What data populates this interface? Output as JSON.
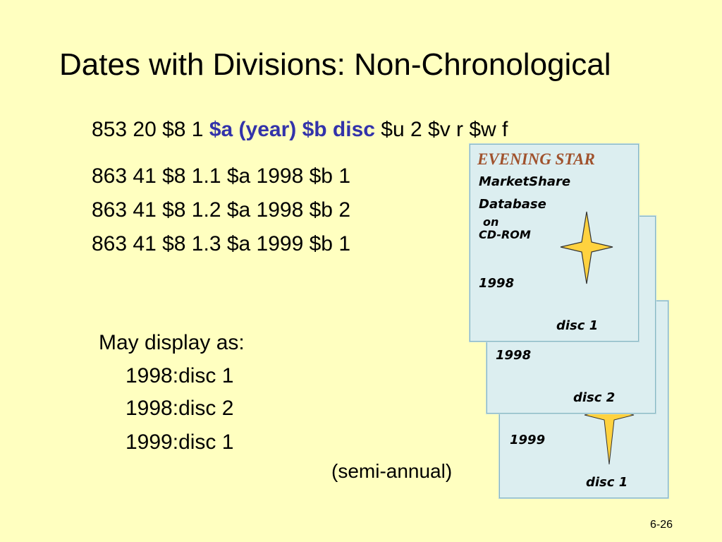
{
  "title": "Dates with Divisions: Non-Chronological",
  "line853": {
    "part1": "853 20  $8 1 ",
    "part2": "$a (year) $b disc",
    "part3": " $u 2 $v r $w f"
  },
  "lines863": [
    "863 41  $8 1.1 $a 1998 $b 1",
    "863 41  $8 1.2 $a 1998 $b 2",
    "863 41  $8 1.3 $a 1999 $b 1"
  ],
  "display": {
    "heading": "May display as:",
    "items": [
      "1998:disc 1",
      "1998:disc 2",
      "1999:disc 1"
    ]
  },
  "note": "(semi-annual)",
  "page_number": "6-26",
  "cards": {
    "front": {
      "brand": "EVENING STAR",
      "line1": "MarketShare",
      "line2": "Database",
      "line3": "on",
      "line4": "CD-ROM",
      "year": "1998",
      "disc": "disc 1"
    },
    "middle": {
      "year": "1998",
      "disc": "disc 2"
    },
    "back": {
      "year": "1999",
      "disc": "disc 1"
    }
  },
  "colors": {
    "background": "#FFFFC0",
    "accent_blue": "#3333AA",
    "brand_brown": "#A0522D",
    "card_fill": "#DCEEF0",
    "star_fill": "#FFD23F"
  },
  "icons": [
    "star-icon"
  ]
}
